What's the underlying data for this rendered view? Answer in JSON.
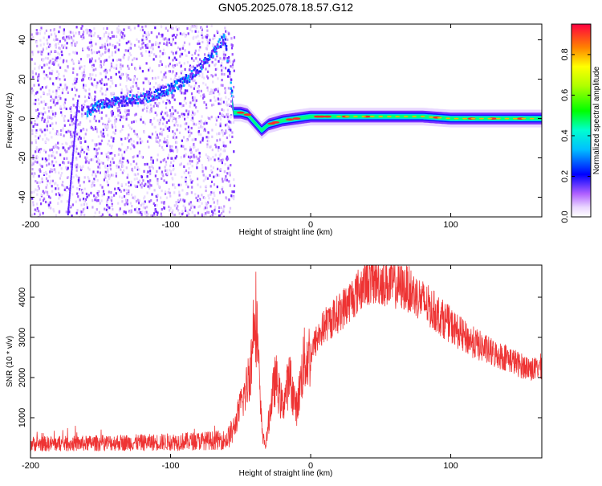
{
  "figure_title": "GN05.2025.078.18.57.G12",
  "chart_data": [
    {
      "type": "heatmap",
      "title": "",
      "xlabel": "Height of straight line (km)",
      "ylabel": "Frequency (Hz)",
      "xlim": [
        -200,
        165
      ],
      "ylim": [
        -50,
        48
      ],
      "xticks": [
        -200,
        -100,
        0,
        100
      ],
      "yticks": [
        -40,
        -20,
        0,
        20,
        40
      ],
      "colorbar": {
        "label": "Normalized spectral amplitude",
        "range": [
          0,
          0.95
        ],
        "ticks": [
          0.0,
          0.2,
          0.4,
          0.6,
          0.8
        ]
      },
      "dominant_frequency_trace": {
        "x": [
          -160,
          -150,
          -140,
          -130,
          -120,
          -110,
          -100,
          -90,
          -80,
          -70,
          -62,
          -55,
          -50,
          -45,
          -40,
          -35,
          -30,
          -20,
          -10,
          0,
          10,
          20,
          40,
          60,
          80,
          100,
          120,
          140,
          165
        ],
        "y": [
          4,
          8,
          9,
          10,
          11,
          13,
          16,
          20,
          26,
          34,
          42,
          3,
          3,
          2,
          -2,
          -6,
          -3,
          -1,
          0,
          1,
          1,
          1,
          1,
          1,
          1,
          0,
          0,
          0,
          0
        ]
      }
    },
    {
      "type": "line",
      "title": "",
      "xlabel": "Height of straight line (km)",
      "ylabel": "SNR (10 * v/v)",
      "xlim": [
        -200,
        165
      ],
      "ylim": [
        0,
        4800
      ],
      "xticks": [
        -200,
        -100,
        0,
        100
      ],
      "yticks": [
        1000,
        2000,
        3000,
        4000
      ],
      "line_color": "#ee3333",
      "series": [
        {
          "x": [
            -200,
            -180,
            -160,
            -140,
            -120,
            -100,
            -80,
            -60,
            -55,
            -50,
            -46,
            -42,
            -40,
            -38,
            -36,
            -34,
            -32,
            -30,
            -28,
            -25,
            -22,
            -20,
            -15,
            -10,
            -5,
            0,
            5,
            10,
            20,
            30,
            40,
            50,
            60,
            70,
            80,
            90,
            100,
            110,
            120,
            130,
            140,
            150,
            160,
            165
          ],
          "y": [
            350,
            350,
            360,
            380,
            380,
            400,
            420,
            450,
            700,
            1300,
            1700,
            2500,
            4000,
            3000,
            1300,
            500,
            300,
            900,
            1400,
            2000,
            1500,
            1300,
            2000,
            1200,
            2400,
            2600,
            3000,
            3300,
            3600,
            4000,
            4400,
            4400,
            4300,
            4200,
            3900,
            3600,
            3300,
            3000,
            2800,
            2600,
            2500,
            2300,
            2200,
            2300
          ]
        }
      ]
    }
  ]
}
